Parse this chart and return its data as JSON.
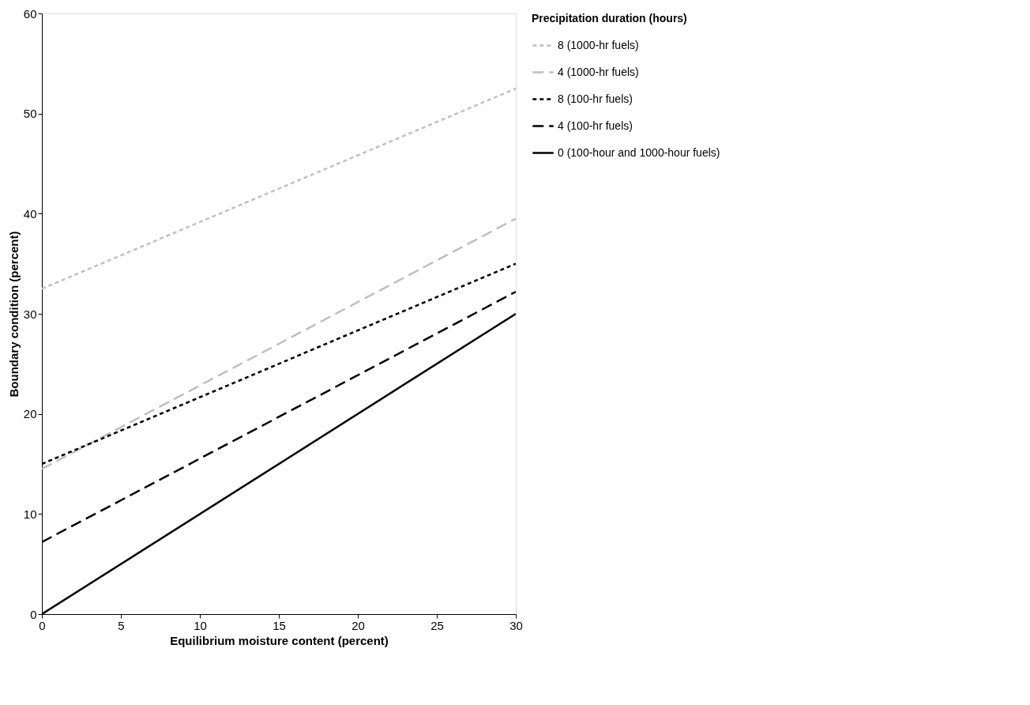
{
  "chart_data": {
    "type": "line",
    "xlabel": "Equilibrium  moisture content (percent)",
    "ylabel": "Boundary condition (percent)",
    "legend_title": "Precipitation duration (hours)",
    "x": [
      0,
      30
    ],
    "series": [
      {
        "name": "8 (1000-hr fuels)",
        "color": "#bfbfbf",
        "line_style": "dotted",
        "values": [
          32.5,
          52.5
        ]
      },
      {
        "name": "4 (1000-hr fuels)",
        "color": "#bfbfbf",
        "line_style": "dashed",
        "values": [
          14.5,
          39.5
        ]
      },
      {
        "name": "8 (100-hr fuels)",
        "color": "#000000",
        "line_style": "dotted",
        "values": [
          15,
          35
        ]
      },
      {
        "name": "4 (100-hr fuels)",
        "color": "#000000",
        "line_style": "dashed",
        "values": [
          7.2,
          32.2
        ]
      },
      {
        "name": "0 (100-hour and 1000-hour fuels)",
        "color": "#000000",
        "line_style": "solid",
        "values": [
          0,
          30
        ]
      }
    ],
    "xlim": [
      0,
      30
    ],
    "xticks": [
      0,
      5,
      10,
      15,
      20,
      25,
      30
    ],
    "ylim": [
      0,
      60
    ],
    "yticks": [
      0,
      10,
      20,
      30,
      40,
      50,
      60
    ],
    "grid": false,
    "legend": "right",
    "marker": "none"
  }
}
